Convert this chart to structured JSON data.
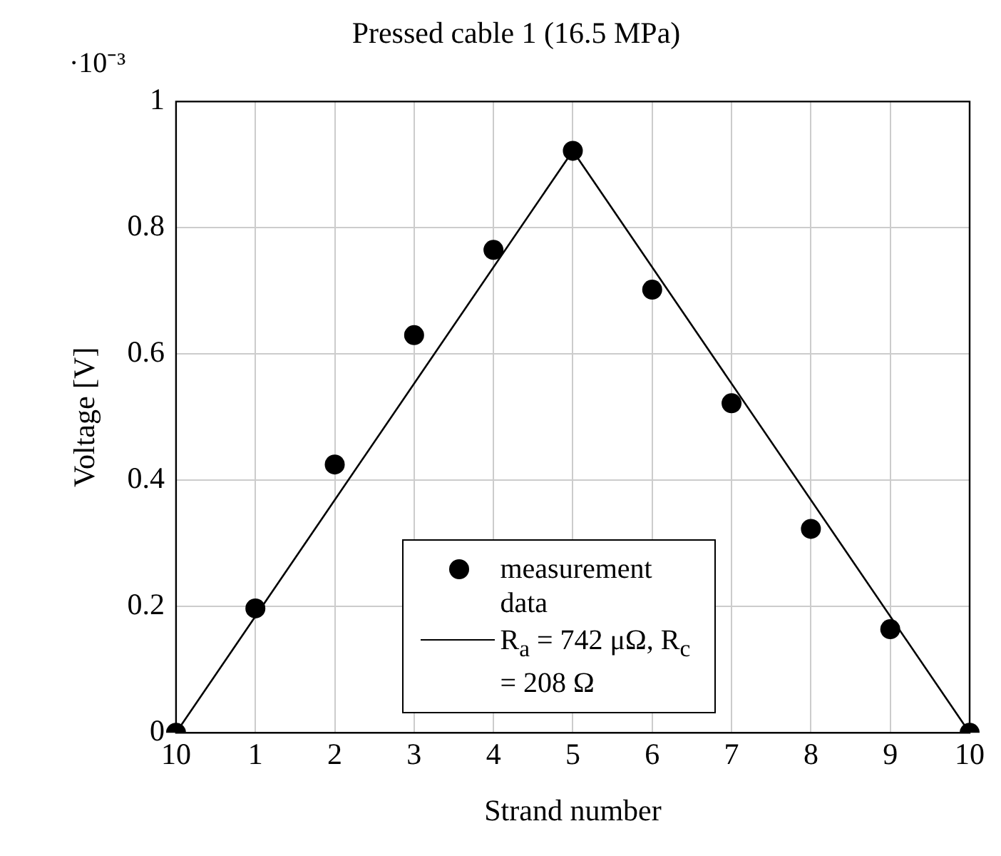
{
  "chart_data": {
    "type": "scatter",
    "title": "Pressed cable 1 (16.5 MPa)",
    "xlabel": "Strand number",
    "ylabel": "Voltage [V]",
    "annotations": [
      "·10⁻³"
    ],
    "categories": [
      "10",
      "1",
      "2",
      "3",
      "4",
      "5",
      "6",
      "7",
      "8",
      "9",
      "10"
    ],
    "series": [
      {
        "name": "measurement data",
        "color": "#000000",
        "marker": "circle",
        "values": [
          0,
          0.197,
          0.425,
          0.63,
          0.765,
          0.922,
          0.702,
          0.522,
          0.323,
          0.164,
          0
        ]
      },
      {
        "name": "R$_{a}$ = 742 μΩ, R$_{c}$ = 208 Ω",
        "type": "line",
        "color": "#000000",
        "marker": "none",
        "line_style": "solid",
        "values": [
          0,
          null,
          null,
          null,
          null,
          0.922,
          null,
          null,
          null,
          null,
          0
        ]
      }
    ],
    "ylim": [
      0,
      1
    ],
    "yticks": [
      0,
      0.2,
      0.4,
      0.6,
      0.8,
      1
    ],
    "grid": true,
    "legend": "bottom"
  }
}
